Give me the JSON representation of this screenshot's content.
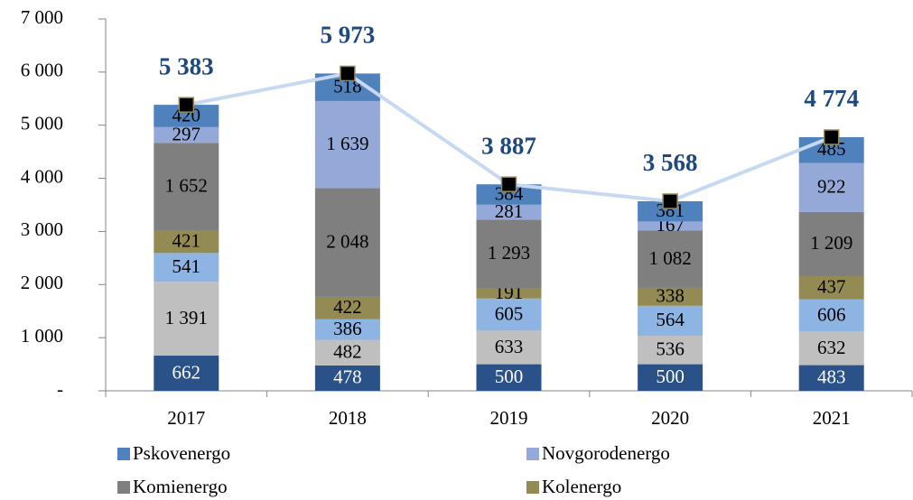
{
  "chart_data": {
    "type": "stacked_bar",
    "categories": [
      "2017",
      "2018",
      "2019",
      "2020",
      "2021"
    ],
    "ylim": [
      0,
      7000
    ],
    "yticks": [
      {
        "value": 0,
        "label": "-"
      },
      {
        "value": 1000,
        "label": "1 000"
      },
      {
        "value": 2000,
        "label": "2 000"
      },
      {
        "value": 3000,
        "label": "3 000"
      },
      {
        "value": 4000,
        "label": "4 000"
      },
      {
        "value": 5000,
        "label": "5 000"
      },
      {
        "value": 6000,
        "label": "6 000"
      },
      {
        "value": 7000,
        "label": "7 000"
      }
    ],
    "series": [
      {
        "color": "#2a5188",
        "label_color": "#ffffff",
        "values": [
          662,
          478,
          500,
          500,
          483
        ],
        "value_labels": [
          "662",
          "478",
          "500",
          "500",
          "483"
        ]
      },
      {
        "color": "#bfbfbf",
        "values": [
          1391,
          482,
          633,
          536,
          632
        ],
        "value_labels": [
          "1 391",
          "482",
          "633",
          "536",
          "632"
        ]
      },
      {
        "color": "#8db4e2",
        "values": [
          541,
          386,
          605,
          564,
          606
        ],
        "value_labels": [
          "541",
          "386",
          "605",
          "564",
          "606"
        ]
      },
      {
        "name": "Kolenergo",
        "color": "#948a54",
        "values": [
          421,
          422,
          191,
          338,
          437
        ],
        "value_labels": [
          "421",
          "422",
          "191",
          "338",
          "437"
        ]
      },
      {
        "name": "Komienergo",
        "color": "#7f7f7f",
        "values": [
          1652,
          2048,
          1293,
          1082,
          1209
        ],
        "value_labels": [
          "1 652",
          "2 048",
          "1 293",
          "1 082",
          "1 209"
        ]
      },
      {
        "name": "Novgorodenergo",
        "color": "#95a9d9",
        "values": [
          297,
          1639,
          281,
          167,
          922
        ],
        "value_labels": [
          "297",
          "1 639",
          "281",
          "167",
          "922"
        ]
      },
      {
        "name": "Pskovenergo",
        "color": "#4f81bd",
        "values": [
          420,
          518,
          384,
          381,
          485
        ],
        "value_labels": [
          "420",
          "518",
          "384",
          "381",
          "485"
        ]
      }
    ],
    "legend_order": [
      "Pskovenergo",
      "Novgorodenergo",
      "Komienergo",
      "Kolenergo"
    ],
    "total_line": {
      "color": "#c6d9f1",
      "marker_color": "#000000",
      "label_color": "#1f497d",
      "values": [
        5383,
        5973,
        3887,
        3568,
        4774
      ],
      "value_labels": [
        "5 383",
        "5 973",
        "3 887",
        "3 568",
        "4 774"
      ]
    }
  }
}
